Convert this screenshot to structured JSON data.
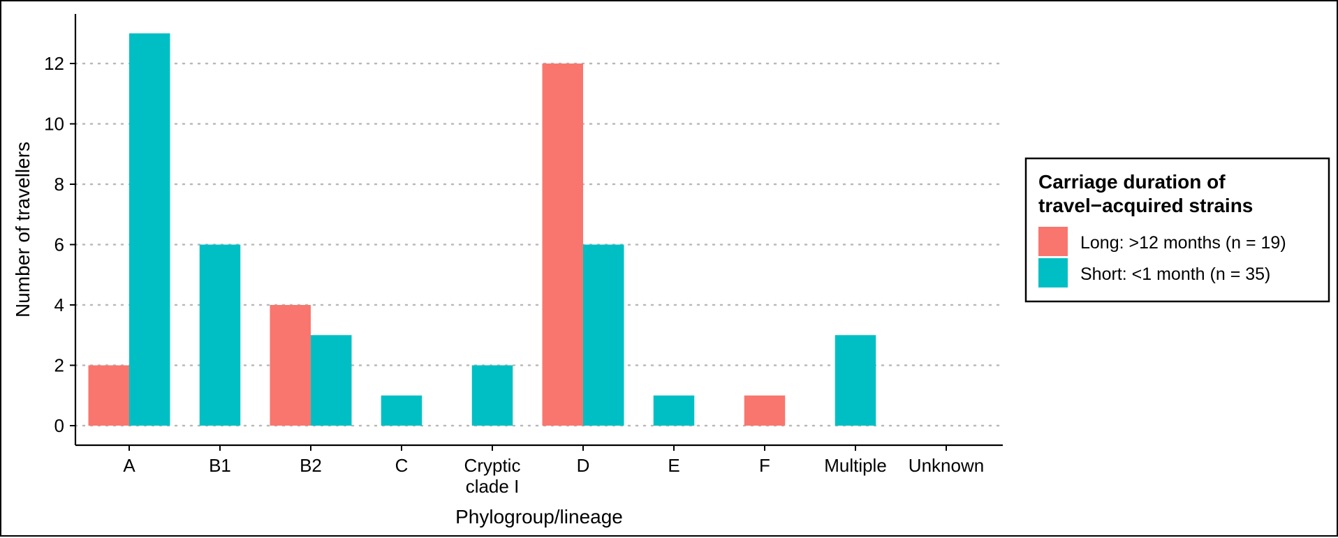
{
  "chart_data": {
    "type": "bar",
    "xlabel": "Phylogroup/lineage",
    "ylabel": "Number of travellers",
    "categories": [
      "A",
      "B1",
      "B2",
      "C",
      "Cryptic\nclade I",
      "D",
      "E",
      "F",
      "Multiple",
      "Unknown"
    ],
    "series": [
      {
        "name": "Long: >12 months (n = 19)",
        "color": "#F8766D",
        "values": [
          2,
          0,
          4,
          0,
          0,
          12,
          0,
          1,
          0,
          0
        ]
      },
      {
        "name": "Short: <1 month (n = 35)",
        "color": "#00BFC4",
        "values": [
          13,
          6,
          3,
          1,
          2,
          6,
          1,
          0,
          3,
          0
        ]
      }
    ],
    "yticks": [
      0,
      2,
      4,
      6,
      8,
      10,
      12
    ],
    "ylim": [
      -0.65,
      13.65
    ],
    "grid": "horizontal dotted",
    "legend": {
      "title_lines": [
        "Carriage duration of",
        "travel−acquired strains"
      ],
      "position": "right"
    }
  }
}
